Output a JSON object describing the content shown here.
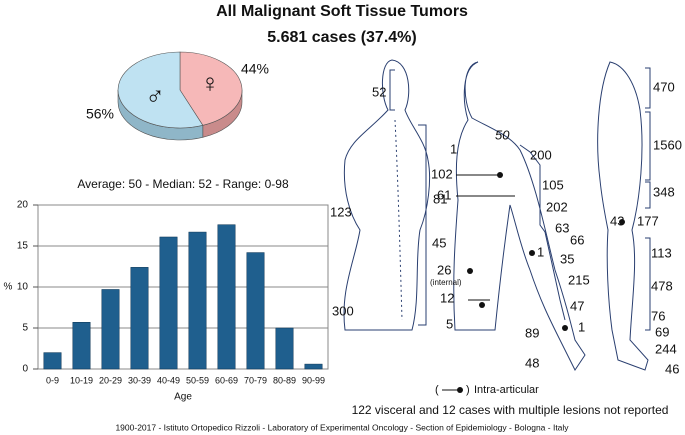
{
  "header": {
    "title": "All Malignant Soft Tissue Tumors",
    "subtitle": "5.681 cases (37.4%)"
  },
  "chart_data": [
    {
      "type": "pie",
      "categories": [
        "♀",
        "♂"
      ],
      "values": [
        44,
        56
      ],
      "value_labels": [
        "44%",
        "56%"
      ],
      "colors": [
        "#f6b8b8",
        "#bfe2f2"
      ],
      "side_colors": [
        "#c98b8b",
        "#8fb6c8"
      ]
    },
    {
      "type": "bar",
      "title": "Average: 50  -  Median: 52  -  Range: 0-98",
      "x_label": "Age",
      "y_label": "%",
      "categories": [
        "0-9",
        "10-19",
        "20-29",
        "30-39",
        "40-49",
        "50-59",
        "60-69",
        "70-79",
        "80-89",
        "90-99"
      ],
      "values": [
        2.0,
        5.7,
        9.7,
        12.4,
        16.1,
        16.7,
        17.6,
        14.2,
        5.0,
        0.6
      ],
      "color": "#1f5f8e",
      "ylim": [
        0,
        20
      ],
      "yticks": [
        0,
        5,
        10,
        15,
        20
      ],
      "grid": true
    }
  ],
  "anatomy": {
    "labels": [
      "52",
      "123",
      "81",
      "300",
      "1",
      "102",
      "61",
      "45",
      "26",
      "(internal)",
      "12",
      "5",
      "50",
      "200",
      "105",
      "202",
      "63",
      "66",
      "1",
      "35",
      "215",
      "47",
      "1",
      "89",
      "48",
      "470",
      "1560",
      "348",
      "43",
      "177",
      "113",
      "478",
      "76",
      "69",
      "244",
      "46"
    ],
    "legend": "Intra-articular",
    "note": "122 visceral and 12 cases with multiple lesions not reported"
  },
  "footer": "1900-2017  -  Istituto Ortopedico Rizzoli  -  Laboratory of Experimental Oncology  -  Section of Epidemiology  -  Bologna  -  Italy"
}
